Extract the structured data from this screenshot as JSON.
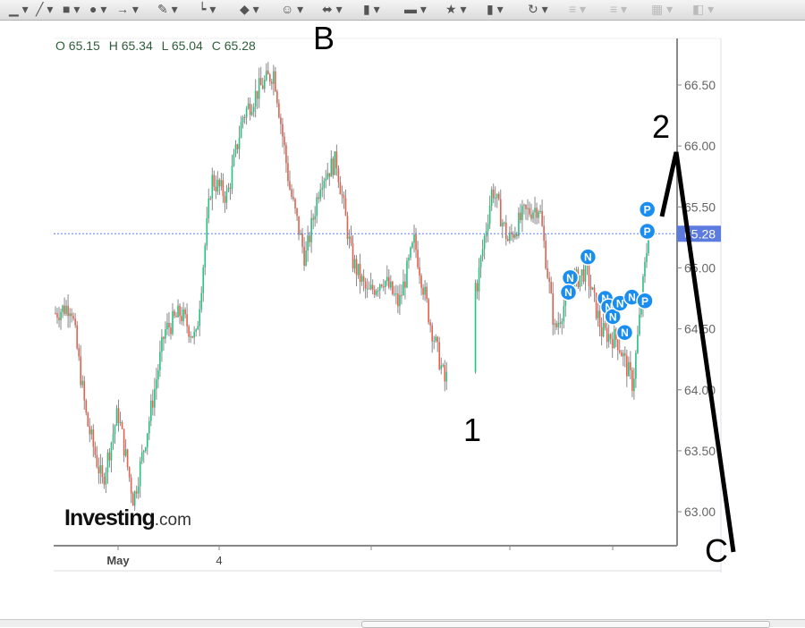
{
  "toolbar": {
    "icons": [
      "line-color-icon",
      "pen-icon",
      "rectangle-icon",
      "ellipse-icon",
      "arrow-icon",
      "pencil-icon",
      "connector-icon",
      "diamond-icon",
      "smiley-icon",
      "double-arrow-icon",
      "flowchart-icon",
      "callout-icon",
      "star-icon",
      "cube-icon",
      "rotate-icon",
      "align-icon",
      "distribute-icon",
      "arrange-icon",
      "shadow-icon"
    ]
  },
  "ohlc": {
    "o": "O 65.15",
    "h": "H 65.34",
    "l": "L 65.04",
    "c": "C 65.28"
  },
  "logo": {
    "main": "Investing",
    "suffix": ".com"
  },
  "colors": {
    "up": "#26c281",
    "down": "#e8604c",
    "wick": "#888888",
    "marker": "#1a8ef0",
    "last_price": "#5b7be0"
  },
  "chart_data": {
    "type": "candlestick",
    "ylim": [
      62.75,
      66.85
    ],
    "yticks": [
      "66.50",
      "66.00",
      "65.50",
      "65.00",
      "64.50",
      "64.00",
      "63.50",
      "63.00"
    ],
    "ytick_values": [
      66.5,
      66.0,
      65.5,
      65.0,
      64.5,
      64.0,
      63.5,
      63.0
    ],
    "xticks": [
      "May",
      "4",
      "",
      "",
      ""
    ],
    "last_price": 65.28,
    "last_price_label": "65.28",
    "close_path": [
      64.63,
      64.7,
      63.75,
      63.24,
      63.82,
      63.09,
      63.75,
      64.48,
      64.63,
      64.41,
      65.73,
      65.58,
      66.24,
      66.46,
      66.61,
      65.66,
      65.07,
      65.73,
      65.88,
      65.07,
      64.78,
      64.92,
      64.7,
      65.22,
      64.56,
      64.04,
      64.99,
      64.85,
      65.66,
      65.22,
      65.44,
      65.51,
      64.48,
      64.85,
      64.99,
      64.48,
      64.41,
      64.04,
      65.29
    ],
    "markers": [
      {
        "label": "N",
        "price": 64.92,
        "pos": 0.868
      },
      {
        "label": "N",
        "price": 64.8,
        "pos": 0.865
      },
      {
        "label": "N",
        "price": 65.09,
        "pos": 0.898
      },
      {
        "label": "N",
        "price": 64.75,
        "pos": 0.927
      },
      {
        "label": "N",
        "price": 64.68,
        "pos": 0.933
      },
      {
        "label": "N",
        "price": 64.6,
        "pos": 0.94
      },
      {
        "label": "N",
        "price": 64.71,
        "pos": 0.952
      },
      {
        "label": "N",
        "price": 64.47,
        "pos": 0.96
      },
      {
        "label": "N",
        "price": 64.76,
        "pos": 0.972
      },
      {
        "label": "P",
        "price": 64.73,
        "pos": 0.994
      },
      {
        "label": "P",
        "price": 65.3,
        "pos": 0.998
      },
      {
        "label": "P",
        "price": 65.48,
        "pos": 0.998
      }
    ]
  },
  "annotations": {
    "b": "B",
    "one": "1",
    "two": "2",
    "c": "C"
  }
}
